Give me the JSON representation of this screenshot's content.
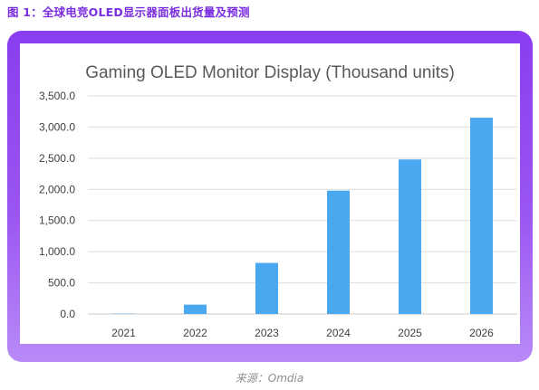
{
  "caption": "图 1：全球电竞OLED显示器面板出货量及预测",
  "source": "来源：Omdia",
  "colors": {
    "bar": "#4aa8f1",
    "frame": "#8a3df0",
    "caption": "#7a2ee0"
  },
  "chart_data": {
    "type": "bar",
    "title": "Gaming OLED Monitor Display (Thousand units)",
    "xlabel": "",
    "ylabel": "",
    "categories": [
      "2021",
      "2022",
      "2023",
      "2024",
      "2025",
      "2026"
    ],
    "values": [
      5,
      150,
      820,
      1980,
      2480,
      3150
    ],
    "ylim": [
      0,
      3500
    ],
    "yticks": [
      "0.0",
      "500.0",
      "1,000.0",
      "1,500.0",
      "2,000.0",
      "2,500.0",
      "3,000.0",
      "3,500.0"
    ],
    "grid": true
  }
}
